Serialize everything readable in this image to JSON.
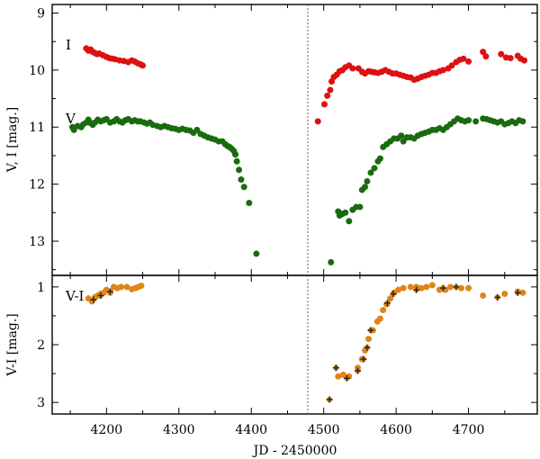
{
  "chart_data": [
    {
      "type": "scatter",
      "panel": "top",
      "ylabel": "V, I [mag.]",
      "ylim": [
        13.6,
        8.85
      ],
      "yticks": [
        9,
        10,
        11,
        12,
        13
      ],
      "xlim": [
        4125,
        4795
      ],
      "series": [
        {
          "name": "I",
          "color": "#dd1111",
          "points": [
            [
              4172,
              9.62
            ],
            [
              4175,
              9.66
            ],
            [
              4178,
              9.64
            ],
            [
              4181,
              9.68
            ],
            [
              4184,
              9.7
            ],
            [
              4187,
              9.72
            ],
            [
              4190,
              9.71
            ],
            [
              4195,
              9.74
            ],
            [
              4200,
              9.77
            ],
            [
              4204,
              9.79
            ],
            [
              4208,
              9.8
            ],
            [
              4212,
              9.81
            ],
            [
              4218,
              9.83
            ],
            [
              4224,
              9.84
            ],
            [
              4230,
              9.86
            ],
            [
              4235,
              9.83
            ],
            [
              4239,
              9.85
            ],
            [
              4243,
              9.88
            ],
            [
              4247,
              9.9
            ],
            [
              4250,
              9.92
            ],
            [
              4492,
              10.9
            ],
            [
              4501,
              10.6
            ],
            [
              4505,
              10.45
            ],
            [
              4509,
              10.35
            ],
            [
              4511,
              10.2
            ],
            [
              4514,
              10.12
            ],
            [
              4518,
              10.08
            ],
            [
              4522,
              10.02
            ],
            [
              4526,
              10.0
            ],
            [
              4530,
              9.95
            ],
            [
              4535,
              9.92
            ],
            [
              4540,
              9.97
            ],
            [
              4548,
              9.97
            ],
            [
              4553,
              10.03
            ],
            [
              4557,
              10.06
            ],
            [
              4562,
              10.02
            ],
            [
              4566,
              10.03
            ],
            [
              4570,
              10.04
            ],
            [
              4575,
              10.05
            ],
            [
              4580,
              10.03
            ],
            [
              4585,
              10.0
            ],
            [
              4590,
              10.03
            ],
            [
              4595,
              10.06
            ],
            [
              4600,
              10.06
            ],
            [
              4605,
              10.08
            ],
            [
              4610,
              10.1
            ],
            [
              4615,
              10.12
            ],
            [
              4620,
              10.13
            ],
            [
              4625,
              10.17
            ],
            [
              4630,
              10.15
            ],
            [
              4635,
              10.12
            ],
            [
              4640,
              10.1
            ],
            [
              4645,
              10.08
            ],
            [
              4650,
              10.05
            ],
            [
              4655,
              10.05
            ],
            [
              4660,
              10.02
            ],
            [
              4665,
              10.0
            ],
            [
              4672,
              9.97
            ],
            [
              4677,
              9.92
            ],
            [
              4683,
              9.86
            ],
            [
              4688,
              9.82
            ],
            [
              4693,
              9.8
            ],
            [
              4700,
              9.85
            ],
            [
              4720,
              9.68
            ],
            [
              4724,
              9.76
            ],
            [
              4745,
              9.72
            ],
            [
              4752,
              9.78
            ],
            [
              4758,
              9.79
            ],
            [
              4768,
              9.75
            ],
            [
              4772,
              9.8
            ],
            [
              4777,
              9.83
            ]
          ]
        },
        {
          "name": "V",
          "color": "#1a6b0f",
          "points": [
            [
              4153,
              11.0
            ],
            [
              4155,
              11.05
            ],
            [
              4160,
              10.98
            ],
            [
              4165,
              11.0
            ],
            [
              4168,
              10.95
            ],
            [
              4172,
              10.92
            ],
            [
              4175,
              10.87
            ],
            [
              4178,
              10.93
            ],
            [
              4181,
              10.96
            ],
            [
              4184,
              10.92
            ],
            [
              4188,
              10.87
            ],
            [
              4192,
              10.9
            ],
            [
              4196,
              10.88
            ],
            [
              4200,
              10.86
            ],
            [
              4205,
              10.92
            ],
            [
              4210,
              10.9
            ],
            [
              4214,
              10.86
            ],
            [
              4218,
              10.9
            ],
            [
              4222,
              10.92
            ],
            [
              4226,
              10.88
            ],
            [
              4230,
              10.86
            ],
            [
              4235,
              10.9
            ],
            [
              4239,
              10.88
            ],
            [
              4243,
              10.9
            ],
            [
              4247,
              10.9
            ],
            [
              4252,
              10.92
            ],
            [
              4256,
              10.94
            ],
            [
              4260,
              10.92
            ],
            [
              4264,
              10.96
            ],
            [
              4270,
              10.98
            ],
            [
              4275,
              11.0
            ],
            [
              4280,
              10.98
            ],
            [
              4285,
              11.0
            ],
            [
              4290,
              11.02
            ],
            [
              4295,
              11.03
            ],
            [
              4300,
              11.05
            ],
            [
              4305,
              11.03
            ],
            [
              4310,
              11.05
            ],
            [
              4315,
              11.06
            ],
            [
              4320,
              11.1
            ],
            [
              4325,
              11.05
            ],
            [
              4330,
              11.12
            ],
            [
              4335,
              11.15
            ],
            [
              4340,
              11.18
            ],
            [
              4345,
              11.2
            ],
            [
              4350,
              11.22
            ],
            [
              4355,
              11.25
            ],
            [
              4360,
              11.25
            ],
            [
              4364,
              11.3
            ],
            [
              4367,
              11.33
            ],
            [
              4370,
              11.35
            ],
            [
              4373,
              11.38
            ],
            [
              4376,
              11.42
            ],
            [
              4378,
              11.48
            ],
            [
              4380,
              11.6
            ],
            [
              4383,
              11.75
            ],
            [
              4386,
              11.92
            ],
            [
              4390,
              12.05
            ],
            [
              4397,
              12.33
            ],
            [
              4407,
              13.22
            ],
            [
              4510,
              13.37
            ],
            [
              4520,
              12.48
            ],
            [
              4522,
              12.55
            ],
            [
              4526,
              12.52
            ],
            [
              4530,
              12.5
            ],
            [
              4535,
              12.65
            ],
            [
              4540,
              12.45
            ],
            [
              4545,
              12.4
            ],
            [
              4550,
              12.4
            ],
            [
              4553,
              12.1
            ],
            [
              4557,
              12.05
            ],
            [
              4560,
              11.95
            ],
            [
              4565,
              11.8
            ],
            [
              4570,
              11.72
            ],
            [
              4575,
              11.6
            ],
            [
              4578,
              11.55
            ],
            [
              4582,
              11.35
            ],
            [
              4587,
              11.3
            ],
            [
              4592,
              11.25
            ],
            [
              4597,
              11.2
            ],
            [
              4602,
              11.2
            ],
            [
              4607,
              11.15
            ],
            [
              4610,
              11.25
            ],
            [
              4615,
              11.18
            ],
            [
              4620,
              11.18
            ],
            [
              4625,
              11.2
            ],
            [
              4630,
              11.15
            ],
            [
              4635,
              11.12
            ],
            [
              4640,
              11.1
            ],
            [
              4645,
              11.08
            ],
            [
              4650,
              11.05
            ],
            [
              4655,
              11.05
            ],
            [
              4660,
              11.02
            ],
            [
              4665,
              11.05
            ],
            [
              4670,
              11.0
            ],
            [
              4675,
              10.95
            ],
            [
              4680,
              10.9
            ],
            [
              4685,
              10.85
            ],
            [
              4690,
              10.88
            ],
            [
              4695,
              10.9
            ],
            [
              4700,
              10.88
            ],
            [
              4710,
              10.9
            ],
            [
              4720,
              10.85
            ],
            [
              4725,
              10.86
            ],
            [
              4730,
              10.88
            ],
            [
              4735,
              10.9
            ],
            [
              4740,
              10.92
            ],
            [
              4745,
              10.9
            ],
            [
              4750,
              10.95
            ],
            [
              4755,
              10.93
            ],
            [
              4760,
              10.9
            ],
            [
              4765,
              10.93
            ],
            [
              4770,
              10.88
            ],
            [
              4775,
              10.9
            ]
          ]
        }
      ],
      "labels": [
        "I",
        "V"
      ]
    },
    {
      "type": "scatter",
      "panel": "bottom",
      "ylabel": "V-I [mag.]",
      "xlabel": "JD - 2450000",
      "ylim": [
        3.2,
        0.8
      ],
      "yticks": [
        1,
        2,
        3
      ],
      "xlim": [
        4125,
        4795
      ],
      "xticks": [
        4200,
        4300,
        4400,
        4500,
        4600,
        4700
      ],
      "series": [
        {
          "name": "V-I",
          "color": "#e08518",
          "points": [
            [
              4175,
              1.2
            ],
            [
              4180,
              1.25
            ],
            [
              4184,
              1.18
            ],
            [
              4188,
              1.15
            ],
            [
              4192,
              1.12
            ],
            [
              4196,
              1.1
            ],
            [
              4200,
              1.05
            ],
            [
              4205,
              1.1
            ],
            [
              4210,
              1.0
            ],
            [
              4215,
              1.02
            ],
            [
              4220,
              1.0
            ],
            [
              4228,
              1.0
            ],
            [
              4235,
              1.04
            ],
            [
              4240,
              1.02
            ],
            [
              4244,
              1.0
            ],
            [
              4248,
              0.98
            ],
            [
              4520,
              2.55
            ],
            [
              4527,
              2.52
            ],
            [
              4535,
              2.55
            ],
            [
              4547,
              2.4
            ],
            [
              4553,
              2.25
            ],
            [
              4557,
              2.1
            ],
            [
              4562,
              1.9
            ],
            [
              4568,
              1.75
            ],
            [
              4574,
              1.6
            ],
            [
              4578,
              1.55
            ],
            [
              4582,
              1.4
            ],
            [
              4587,
              1.3
            ],
            [
              4592,
              1.2
            ],
            [
              4597,
              1.1
            ],
            [
              4603,
              1.05
            ],
            [
              4610,
              1.02
            ],
            [
              4620,
              1.0
            ],
            [
              4628,
              1.0
            ],
            [
              4635,
              1.02
            ],
            [
              4642,
              1.0
            ],
            [
              4650,
              0.97
            ],
            [
              4660,
              1.05
            ],
            [
              4668,
              1.05
            ],
            [
              4675,
              1.0
            ],
            [
              4690,
              1.02
            ],
            [
              4700,
              1.02
            ],
            [
              4720,
              1.15
            ],
            [
              4750,
              1.12
            ],
            [
              4768,
              1.08
            ],
            [
              4775,
              1.1
            ]
          ]
        },
        {
          "name": "V-I (cross)",
          "color": "#222222",
          "points": [
            [
              4182,
              1.22
            ],
            [
              4192,
              1.15
            ],
            [
              4205,
              1.08
            ],
            [
              4508,
              2.95
            ],
            [
              4517,
              2.4
            ],
            [
              4532,
              2.58
            ],
            [
              4547,
              2.45
            ],
            [
              4555,
              2.25
            ],
            [
              4560,
              2.05
            ],
            [
              4565,
              1.75
            ],
            [
              4588,
              1.28
            ],
            [
              4596,
              1.12
            ],
            [
              4628,
              1.05
            ],
            [
              4665,
              1.02
            ],
            [
              4683,
              1.0
            ],
            [
              4740,
              1.18
            ],
            [
              4768,
              1.1
            ]
          ]
        }
      ],
      "labels": [
        "V-I"
      ]
    }
  ],
  "gap_marker_jd": 4478
}
